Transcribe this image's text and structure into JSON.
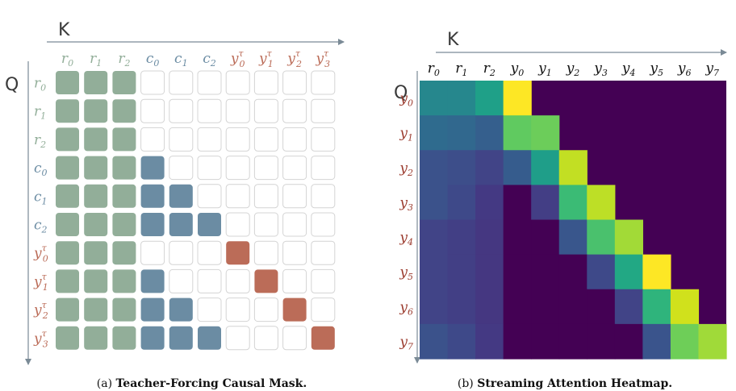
{
  "panel_a": {
    "axis_k": "K",
    "axis_q": "Q",
    "tokens": [
      {
        "base": "r",
        "sub": "0",
        "sup": "",
        "group": "r"
      },
      {
        "base": "r",
        "sub": "1",
        "sup": "",
        "group": "r"
      },
      {
        "base": "r",
        "sub": "2",
        "sup": "",
        "group": "r"
      },
      {
        "base": "c",
        "sub": "0",
        "sup": "",
        "group": "c"
      },
      {
        "base": "c",
        "sub": "1",
        "sup": "",
        "group": "c"
      },
      {
        "base": "c",
        "sub": "2",
        "sup": "",
        "group": "c"
      },
      {
        "base": "y",
        "sub": "0",
        "sup": "τ",
        "group": "y"
      },
      {
        "base": "y",
        "sub": "1",
        "sup": "τ",
        "group": "y"
      },
      {
        "base": "y",
        "sub": "2",
        "sup": "τ",
        "group": "y"
      },
      {
        "base": "y",
        "sub": "3",
        "sup": "τ",
        "group": "y"
      }
    ],
    "mask": [
      [
        1,
        1,
        1,
        0,
        0,
        0,
        0,
        0,
        0,
        0
      ],
      [
        1,
        1,
        1,
        0,
        0,
        0,
        0,
        0,
        0,
        0
      ],
      [
        1,
        1,
        1,
        0,
        0,
        0,
        0,
        0,
        0,
        0
      ],
      [
        1,
        1,
        1,
        2,
        0,
        0,
        0,
        0,
        0,
        0
      ],
      [
        1,
        1,
        1,
        2,
        2,
        0,
        0,
        0,
        0,
        0
      ],
      [
        1,
        1,
        1,
        2,
        2,
        2,
        0,
        0,
        0,
        0
      ],
      [
        1,
        1,
        1,
        0,
        0,
        0,
        3,
        0,
        0,
        0
      ],
      [
        1,
        1,
        1,
        2,
        0,
        0,
        0,
        3,
        0,
        0
      ],
      [
        1,
        1,
        1,
        2,
        2,
        0,
        0,
        0,
        3,
        0
      ],
      [
        1,
        1,
        1,
        2,
        2,
        2,
        0,
        0,
        0,
        3
      ]
    ],
    "colors": {
      "r": "#92ae99",
      "c": "#6b8ca3",
      "y": "#bb6c58",
      "empty": "#ffffff",
      "empty_border": "#d4d4d4",
      "axis": "#7a8a96"
    },
    "caption_prefix": "(a) ",
    "caption_bold": "Teacher-Forcing Causal Mask."
  },
  "panel_b": {
    "axis_k": "K",
    "axis_q": "Q",
    "col_tokens": [
      {
        "base": "r",
        "sub": "0"
      },
      {
        "base": "r",
        "sub": "1"
      },
      {
        "base": "r",
        "sub": "2"
      },
      {
        "base": "y",
        "sub": "0"
      },
      {
        "base": "y",
        "sub": "1"
      },
      {
        "base": "y",
        "sub": "2"
      },
      {
        "base": "y",
        "sub": "3"
      },
      {
        "base": "y",
        "sub": "4"
      },
      {
        "base": "y",
        "sub": "5"
      },
      {
        "base": "y",
        "sub": "6"
      },
      {
        "base": "y",
        "sub": "7"
      }
    ],
    "row_tokens": [
      {
        "base": "y",
        "sub": "0"
      },
      {
        "base": "y",
        "sub": "1"
      },
      {
        "base": "y",
        "sub": "2"
      },
      {
        "base": "y",
        "sub": "3"
      },
      {
        "base": "y",
        "sub": "4"
      },
      {
        "base": "y",
        "sub": "5"
      },
      {
        "base": "y",
        "sub": "6"
      },
      {
        "base": "y",
        "sub": "7"
      }
    ],
    "heatmap": [
      [
        "#26878d",
        "#26878d",
        "#1fa088",
        "#fde725",
        null,
        null,
        null,
        null,
        null,
        null,
        null
      ],
      [
        "#2f6b8e",
        "#31688e",
        "#355f8d",
        "#60ca60",
        "#6ccd5a",
        null,
        null,
        null,
        null,
        null,
        null
      ],
      [
        "#3b528b",
        "#3d4e8a",
        "#414487",
        "#365c8d",
        "#1f9e89",
        "#c2df23",
        null,
        null,
        null,
        null,
        null
      ],
      [
        "#3b528b",
        "#3e4989",
        "#443983",
        "#440154",
        "#433e85",
        "#3bbb75",
        "#bddf26",
        null,
        null,
        null,
        null
      ],
      [
        "#414487",
        "#423f85",
        "#453781",
        "#440154",
        "#440154",
        "#39568c",
        "#4ac16d",
        "#a2da37",
        null,
        null,
        null
      ],
      [
        "#414487",
        "#423f85",
        "#453781",
        "#440154",
        "#440154",
        "#440154",
        "#3e4989",
        "#22a884",
        "#fde725",
        null,
        null
      ],
      [
        "#414487",
        "#423f85",
        "#453781",
        "#440154",
        "#440154",
        "#440154",
        "#440154",
        "#414487",
        "#2fb47c",
        "#d0e11c",
        null
      ],
      [
        "#3b528b",
        "#3e4989",
        "#443983",
        "#440154",
        "#440154",
        "#440154",
        "#440154",
        "#440154",
        "#3a548c",
        "#6ece58",
        "#a0da39"
      ]
    ],
    "background": "#440154",
    "axis_color": "#7a8a96",
    "label_color": "#9b3b2e",
    "caption_prefix": "(b) ",
    "caption_bold": "Streaming Attention Heatmap."
  }
}
